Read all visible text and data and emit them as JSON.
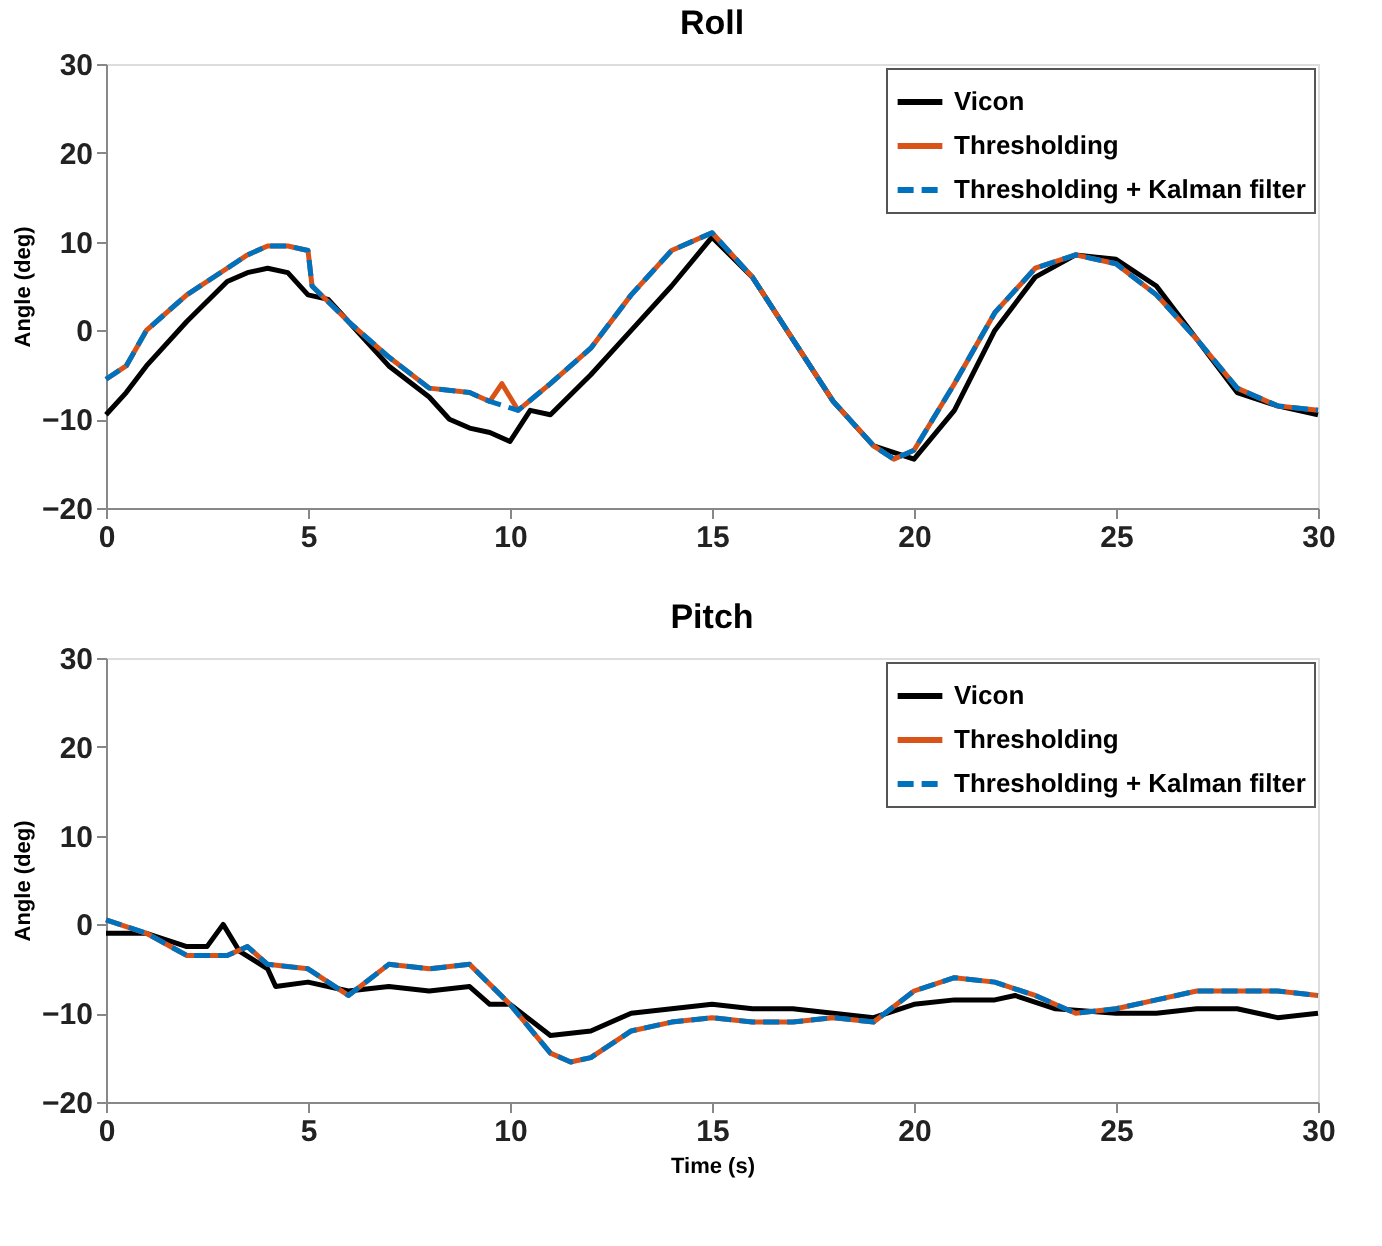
{
  "chart_data": [
    {
      "type": "line",
      "title": "Roll",
      "ylabel": "Angle (deg)",
      "xlim": [
        0,
        30
      ],
      "xticks": [
        0,
        5,
        10,
        15,
        20,
        25,
        30
      ],
      "ylim": [
        -20,
        30
      ],
      "yticks": [
        -20,
        -10,
        0,
        10,
        20,
        30
      ],
      "grid": false,
      "legend": "top right",
      "marker": "none",
      "series": [
        {
          "name": "Vicon",
          "color": "#000000",
          "line_style": "solid",
          "x": [
            0,
            0.5,
            1,
            2,
            3,
            3.5,
            4,
            4.5,
            5,
            5.5,
            6,
            7,
            8,
            8.5,
            9,
            9.5,
            10,
            10.5,
            11,
            12,
            13,
            14,
            15,
            16,
            17,
            18,
            19,
            20,
            21,
            22,
            23,
            24,
            25,
            26,
            27,
            28,
            29,
            30
          ],
          "values": [
            -9.5,
            -7,
            -4,
            1,
            5.5,
            6.5,
            7,
            6.5,
            4,
            3.5,
            1,
            -4,
            -7.5,
            -10,
            -11,
            -11.5,
            -12.5,
            -9,
            -9.5,
            -5,
            0,
            5,
            10.5,
            6,
            -1,
            -8,
            -13,
            -14.5,
            -9,
            0,
            6,
            8.5,
            8,
            5,
            -1,
            -7,
            -8.5,
            -9.5
          ]
        },
        {
          "name": "Thresholding",
          "color": "#d95319",
          "line_style": "solid",
          "x": [
            0,
            0.5,
            1,
            2,
            3,
            3.5,
            4,
            4.5,
            5,
            5.1,
            6,
            7,
            8,
            9,
            9.5,
            9.8,
            10.2,
            11,
            12,
            13,
            14,
            15,
            16,
            17,
            18,
            19,
            19.5,
            20,
            21,
            22,
            23,
            24,
            25,
            26,
            27,
            28,
            29,
            30
          ],
          "values": [
            -5.5,
            -4,
            0,
            4,
            7,
            8.5,
            9.5,
            9.5,
            9,
            5,
            1,
            -3,
            -6.5,
            -7,
            -8,
            -6,
            -9,
            -6,
            -2,
            4,
            9,
            11,
            6,
            -1,
            -8,
            -13,
            -14.5,
            -13.5,
            -6,
            2,
            7,
            8.5,
            7.5,
            4,
            -1,
            -6.5,
            -8.5,
            -9
          ]
        },
        {
          "name": "Thresholding + Kalman filter",
          "color": "#0072bd",
          "line_style": "dashed",
          "x": [
            0,
            0.5,
            1,
            2,
            3,
            3.5,
            4,
            4.5,
            5,
            5.1,
            6,
            7,
            8,
            9,
            9.5,
            10.2,
            11,
            12,
            13,
            14,
            15,
            16,
            17,
            18,
            19,
            19.5,
            20,
            21,
            22,
            23,
            24,
            25,
            26,
            27,
            28,
            29,
            30
          ],
          "values": [
            -5.5,
            -4,
            0,
            4,
            7,
            8.5,
            9.5,
            9.5,
            9,
            5,
            1,
            -3,
            -6.5,
            -7,
            -8,
            -9,
            -6,
            -2,
            4,
            9,
            11,
            6,
            -1,
            -8,
            -13,
            -14.5,
            -13.5,
            -6,
            2,
            7,
            8.5,
            7.5,
            4,
            -1,
            -6.5,
            -8.5,
            -9
          ]
        }
      ]
    },
    {
      "type": "line",
      "title": "Pitch",
      "xlabel": "Time (s)",
      "ylabel": "Angle (deg)",
      "xlim": [
        0,
        30
      ],
      "xticks": [
        0,
        5,
        10,
        15,
        20,
        25,
        30
      ],
      "ylim": [
        -20,
        30
      ],
      "yticks": [
        -20,
        -10,
        0,
        10,
        20,
        30
      ],
      "grid": false,
      "legend": "top right",
      "marker": "none",
      "series": [
        {
          "name": "Vicon",
          "color": "#000000",
          "line_style": "solid",
          "x": [
            0,
            1,
            2,
            2.5,
            2.9,
            3.3,
            4,
            4.2,
            5,
            6,
            7,
            8,
            9,
            9.5,
            10,
            11,
            12,
            13,
            14,
            15,
            16,
            17,
            18,
            19,
            20,
            21,
            22,
            22.5,
            23.5,
            25,
            26,
            27,
            28,
            29,
            30
          ],
          "values": [
            -1,
            -1,
            -2.5,
            -2.5,
            0,
            -3,
            -5,
            -7,
            -6.5,
            -7.5,
            -7,
            -7.5,
            -7,
            -9,
            -9,
            -12.5,
            -12,
            -10,
            -9.5,
            -9,
            -9.5,
            -9.5,
            -10,
            -10.5,
            -9,
            -8.5,
            -8.5,
            -8,
            -9.5,
            -10,
            -10,
            -9.5,
            -9.5,
            -10.5,
            -10
          ]
        },
        {
          "name": "Thresholding",
          "color": "#d95319",
          "line_style": "solid",
          "x": [
            0,
            1,
            2,
            3,
            3.5,
            4,
            5,
            6,
            7,
            8,
            9,
            10,
            11,
            11.5,
            12,
            13,
            14,
            15,
            16,
            17,
            18,
            19,
            20,
            21,
            22,
            23,
            24,
            25,
            26,
            27,
            28,
            29,
            30
          ],
          "values": [
            0.5,
            -1,
            -3.5,
            -3.5,
            -2.5,
            -4.5,
            -5,
            -8,
            -4.5,
            -5,
            -4.5,
            -9,
            -14.5,
            -15.5,
            -15,
            -12,
            -11,
            -10.5,
            -11,
            -11,
            -10.5,
            -11,
            -7.5,
            -6,
            -6.5,
            -8,
            -10,
            -9.5,
            -8.5,
            -7.5,
            -7.5,
            -7.5,
            -8
          ]
        },
        {
          "name": "Thresholding + Kalman filter",
          "color": "#0072bd",
          "line_style": "dashed",
          "x": [
            0,
            1,
            2,
            3,
            3.5,
            4,
            5,
            6,
            7,
            8,
            9,
            10,
            11,
            11.5,
            12,
            13,
            14,
            15,
            16,
            17,
            18,
            19,
            20,
            21,
            22,
            23,
            24,
            25,
            26,
            27,
            28,
            29,
            30
          ],
          "values": [
            0.5,
            -1,
            -3.5,
            -3.5,
            -2.5,
            -4.5,
            -5,
            -8,
            -4.5,
            -5,
            -4.5,
            -9,
            -14.5,
            -15.5,
            -15,
            -12,
            -11,
            -10.5,
            -11,
            -11,
            -10.5,
            -11,
            -7.5,
            -6,
            -6.5,
            -8,
            -10,
            -9.5,
            -8.5,
            -7.5,
            -7.5,
            -7.5,
            -8
          ]
        }
      ]
    }
  ]
}
